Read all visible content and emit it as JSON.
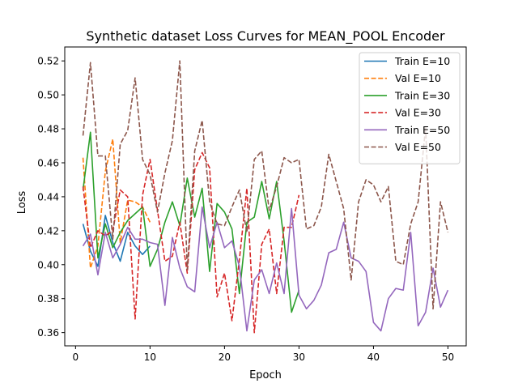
{
  "chart_data": {
    "type": "line",
    "title": "Synthetic dataset Loss Curves for MEAN_POOL Encoder",
    "xlabel": "Epoch",
    "ylabel": "Loss",
    "xlim": [
      -1.45,
      52.45
    ],
    "ylim": [
      0.3522,
      0.5282
    ],
    "x_ticks": [
      0,
      10,
      20,
      30,
      40,
      50
    ],
    "y_ticks": [
      0.36,
      0.38,
      0.4,
      0.42,
      0.44,
      0.46,
      0.48,
      0.5,
      0.52
    ],
    "y_tick_labels": [
      "0.36",
      "0.38",
      "0.40",
      "0.42",
      "0.44",
      "0.46",
      "0.48",
      "0.50",
      "0.52"
    ],
    "legend_position": "upper right",
    "grid": false,
    "series": [
      {
        "name": "Train E=10",
        "color": "#1f77b4",
        "style": "solid",
        "x": [
          1,
          2,
          3,
          4,
          5,
          6,
          7,
          8,
          9,
          10
        ],
        "y": [
          0.424,
          0.408,
          0.399,
          0.429,
          0.413,
          0.402,
          0.419,
          0.411,
          0.406,
          0.411
        ]
      },
      {
        "name": "Val E=10",
        "color": "#ff7f0e",
        "style": "dashed",
        "x": [
          1,
          2,
          3,
          4,
          5,
          6,
          7,
          8,
          9,
          10
        ],
        "y": [
          0.463,
          0.398,
          0.411,
          0.455,
          0.474,
          0.413,
          0.438,
          0.437,
          0.434,
          0.425
        ]
      },
      {
        "name": "Train E=30",
        "color": "#2ca02c",
        "style": "solid",
        "x": [
          1,
          2,
          3,
          4,
          5,
          6,
          7,
          8,
          9,
          10,
          11,
          12,
          13,
          14,
          15,
          16,
          17,
          18,
          19,
          20,
          21,
          22,
          23,
          24,
          25,
          26,
          27,
          28,
          29,
          30
        ],
        "y": [
          0.444,
          0.478,
          0.404,
          0.424,
          0.41,
          0.419,
          0.426,
          0.43,
          0.434,
          0.399,
          0.409,
          0.425,
          0.437,
          0.423,
          0.451,
          0.428,
          0.445,
          0.396,
          0.436,
          0.431,
          0.421,
          0.383,
          0.425,
          0.428,
          0.449,
          0.427,
          0.449,
          0.414,
          0.372,
          0.385
        ]
      },
      {
        "name": "Val E=30",
        "color": "#d62728",
        "style": "dashed",
        "x": [
          1,
          2,
          3,
          4,
          5,
          6,
          7,
          8,
          9,
          10,
          11,
          12,
          13,
          14,
          15,
          16,
          17,
          18,
          19,
          20,
          21,
          22,
          23,
          24,
          25,
          26,
          27,
          28,
          29,
          30
        ],
        "y": [
          0.446,
          0.41,
          0.42,
          0.417,
          0.42,
          0.444,
          0.44,
          0.368,
          0.441,
          0.462,
          0.432,
          0.402,
          0.405,
          0.425,
          0.395,
          0.456,
          0.466,
          0.457,
          0.381,
          0.395,
          0.367,
          0.403,
          0.445,
          0.36,
          0.412,
          0.421,
          0.383,
          0.422,
          0.422,
          0.441
        ]
      },
      {
        "name": "Train E=50",
        "color": "#9467bd",
        "style": "solid",
        "x": [
          1,
          2,
          3,
          4,
          5,
          6,
          7,
          8,
          9,
          10,
          11,
          12,
          13,
          14,
          15,
          16,
          17,
          18,
          19,
          20,
          21,
          22,
          23,
          24,
          25,
          26,
          27,
          28,
          29,
          30,
          31,
          32,
          33,
          34,
          35,
          36,
          37,
          38,
          39,
          40,
          41,
          42,
          43,
          44,
          45,
          46,
          47,
          48,
          49,
          50
        ],
        "y": [
          0.411,
          0.418,
          0.394,
          0.419,
          0.404,
          0.412,
          0.422,
          0.415,
          0.415,
          0.413,
          0.412,
          0.376,
          0.416,
          0.398,
          0.387,
          0.384,
          0.434,
          0.41,
          0.425,
          0.41,
          0.414,
          0.399,
          0.361,
          0.391,
          0.397,
          0.383,
          0.401,
          0.383,
          0.433,
          0.382,
          0.374,
          0.379,
          0.388,
          0.407,
          0.409,
          0.425,
          0.404,
          0.402,
          0.396,
          0.366,
          0.361,
          0.38,
          0.386,
          0.385,
          0.419,
          0.364,
          0.372,
          0.398,
          0.375,
          0.385
        ]
      },
      {
        "name": "Val E=50",
        "color": "#8c564b",
        "style": "dashed",
        "x": [
          1,
          2,
          3,
          4,
          5,
          6,
          7,
          8,
          9,
          10,
          11,
          12,
          13,
          14,
          15,
          16,
          17,
          18,
          19,
          20,
          21,
          22,
          23,
          24,
          25,
          26,
          27,
          28,
          29,
          30,
          31,
          32,
          33,
          34,
          35,
          36,
          37,
          38,
          39,
          40,
          41,
          42,
          43,
          44,
          45,
          46,
          47,
          48,
          49,
          50
        ],
        "y": [
          0.476,
          0.519,
          0.464,
          0.464,
          0.415,
          0.471,
          0.479,
          0.51,
          0.462,
          0.453,
          0.431,
          0.454,
          0.473,
          0.52,
          0.397,
          0.467,
          0.485,
          0.437,
          0.424,
          0.423,
          0.434,
          0.444,
          0.419,
          0.462,
          0.467,
          0.432,
          0.446,
          0.463,
          0.46,
          0.462,
          0.421,
          0.423,
          0.434,
          0.465,
          0.449,
          0.433,
          0.391,
          0.437,
          0.45,
          0.447,
          0.437,
          0.446,
          0.402,
          0.4,
          0.424,
          0.437,
          0.481,
          0.374,
          0.437,
          0.419
        ]
      }
    ]
  }
}
